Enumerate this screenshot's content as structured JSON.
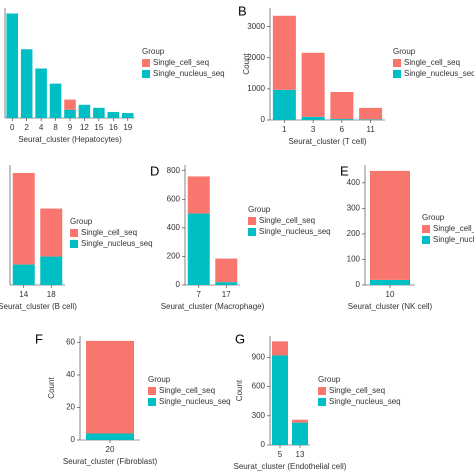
{
  "chart_data": [
    {
      "type": "bar",
      "stacked": true,
      "x_label": "Seurat_cluster (Hepatocytes)",
      "legend_title": "Group",
      "categories": [
        "0",
        "2",
        "4",
        "8",
        "9",
        "12",
        "15",
        "16",
        "19"
      ],
      "ylim": [
        0,
        4000
      ],
      "series": [
        {
          "name": "Single_cell_seq",
          "color": "#F8766D",
          "values": [
            0,
            0,
            0,
            0,
            370,
            0,
            0,
            0,
            0
          ]
        },
        {
          "name": "Single_nucleus_seq",
          "color": "#00BFC4",
          "values": [
            3800,
            2500,
            1800,
            1250,
            300,
            480,
            370,
            220,
            180
          ]
        }
      ]
    },
    {
      "type": "bar",
      "stacked": true,
      "title": "B",
      "x_label": "Seurat_cluster (T cell)",
      "y_label": "Count",
      "legend_title": "Group",
      "categories": [
        "1",
        "3",
        "6",
        "11"
      ],
      "ylim": [
        0,
        3600
      ],
      "yticks": [
        0,
        1000,
        2000,
        3000
      ],
      "series": [
        {
          "name": "Single_cell_seq",
          "color": "#F8766D",
          "values": [
            2380,
            2060,
            870,
            370
          ]
        },
        {
          "name": "Single_nucleus_seq",
          "color": "#00BFC4",
          "values": [
            970,
            100,
            30,
            20
          ]
        }
      ]
    },
    {
      "type": "bar",
      "stacked": true,
      "x_label": "Seurat_cluster (B cell)",
      "legend_title": "Group",
      "categories": [
        "14",
        "18"
      ],
      "ylim": [
        0,
        135
      ],
      "series": [
        {
          "name": "Single_cell_seq",
          "color": "#F8766D",
          "values": [
            103,
            54
          ]
        },
        {
          "name": "Single_nucleus_seq",
          "color": "#00BFC4",
          "values": [
            23,
            32
          ]
        }
      ]
    },
    {
      "type": "bar",
      "stacked": true,
      "title": "D",
      "x_label": "Seurat_cluster (Macrophage)",
      "legend_title": "Group",
      "categories": [
        "7",
        "17"
      ],
      "ylim": [
        0,
        840
      ],
      "yticks": [
        0,
        200,
        400,
        600,
        800
      ],
      "series": [
        {
          "name": "Single_cell_seq",
          "color": "#F8766D",
          "values": [
            260,
            165
          ]
        },
        {
          "name": "Single_nucleus_seq",
          "color": "#00BFC4",
          "values": [
            500,
            20
          ]
        }
      ]
    },
    {
      "type": "bar",
      "stacked": true,
      "title": "E",
      "x_label": "Seurat_cluster (NK cell)",
      "legend_title": "Group",
      "categories": [
        "10"
      ],
      "ylim": [
        0,
        470
      ],
      "yticks": [
        0,
        100,
        200,
        300,
        400
      ],
      "series": [
        {
          "name": "Single_cell_seq",
          "color": "#F8766D",
          "values": [
            427
          ]
        },
        {
          "name": "Single_nucleus_seq",
          "color": "#00BFC4",
          "values": [
            20
          ]
        }
      ]
    },
    {
      "type": "bar",
      "stacked": true,
      "title": "F",
      "x_label": "Seurat_cluster (Fibroblast)",
      "y_label": "Count",
      "legend_title": "Group",
      "categories": [
        "20"
      ],
      "ylim": [
        0,
        64
      ],
      "yticks": [
        0,
        20,
        40,
        60
      ],
      "series": [
        {
          "name": "Single_cell_seq",
          "color": "#F8766D",
          "values": [
            57
          ]
        },
        {
          "name": "Single_nucleus_seq",
          "color": "#00BFC4",
          "values": [
            4
          ]
        }
      ]
    },
    {
      "type": "bar",
      "stacked": true,
      "title": "G",
      "x_label": "Seurat_cluster (Endothelial cell)",
      "y_label": "Count",
      "legend_title": "Group",
      "categories": [
        "5",
        "13"
      ],
      "ylim": [
        0,
        1120
      ],
      "yticks": [
        0,
        300,
        600,
        900
      ],
      "series": [
        {
          "name": "Single_cell_seq",
          "color": "#F8766D",
          "values": [
            145,
            30
          ]
        },
        {
          "name": "Single_nucleus_seq",
          "color": "#00BFC4",
          "values": [
            920,
            230
          ]
        }
      ]
    }
  ]
}
